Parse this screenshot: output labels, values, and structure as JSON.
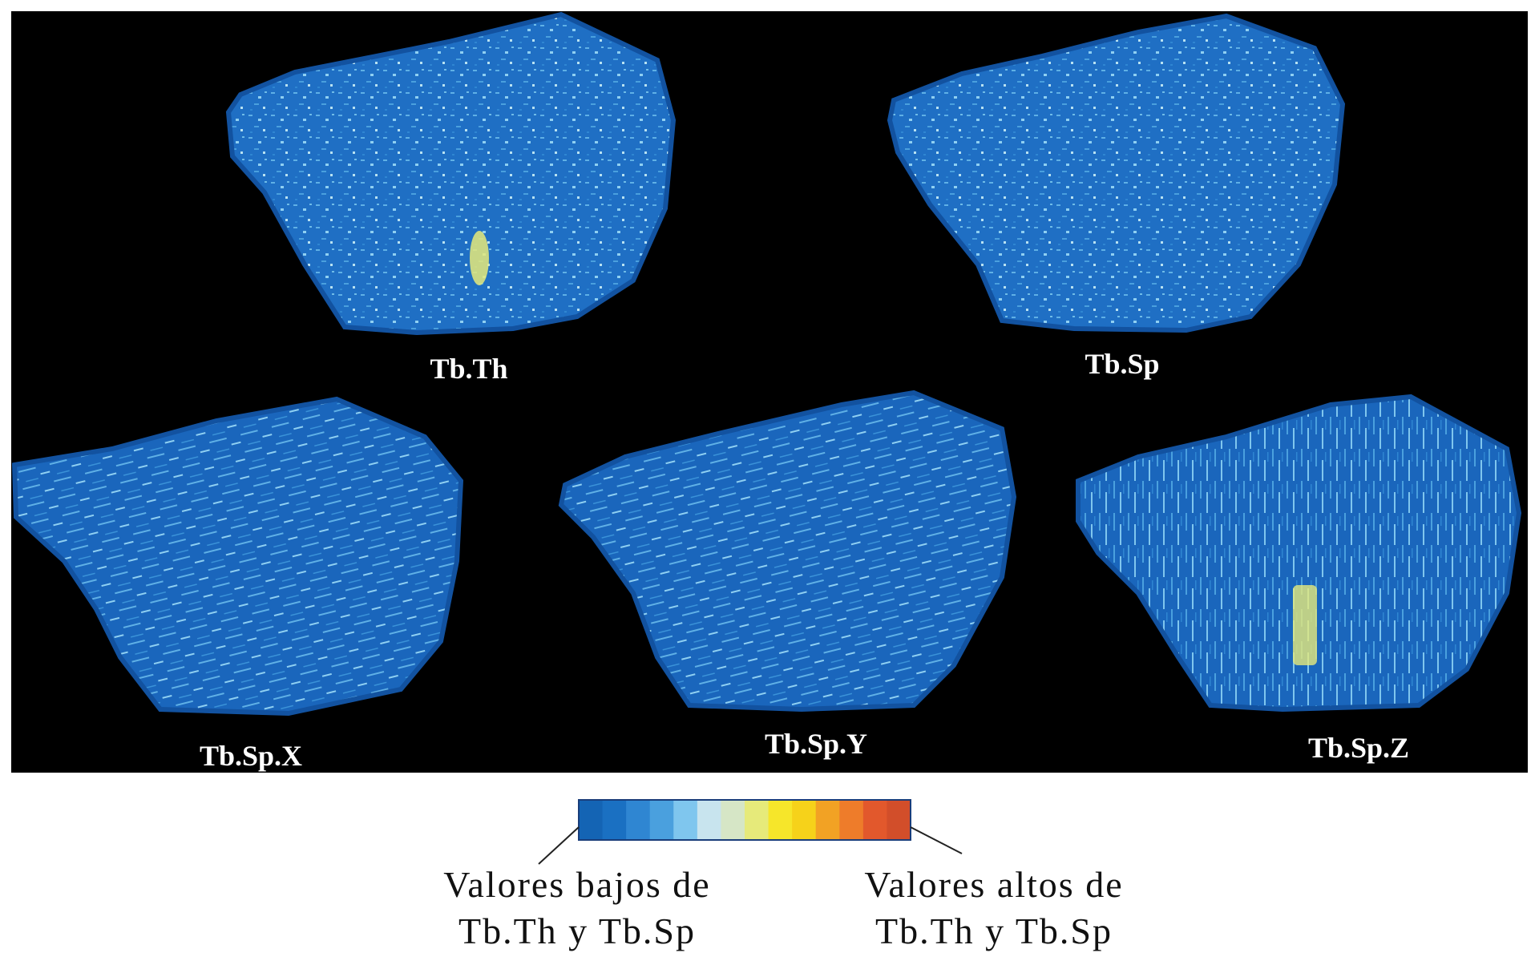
{
  "figure": {
    "panels": [
      {
        "label": "Tb.Th",
        "texture": "speckled",
        "hotspot": "yellow"
      },
      {
        "label": "Tb.Sp",
        "texture": "speckled",
        "hotspot": "none"
      },
      {
        "label": "Tb.Sp.X",
        "texture": "streaks",
        "hotspot": "none"
      },
      {
        "label": "Tb.Sp.Y",
        "texture": "streaks",
        "hotspot": "none"
      },
      {
        "label": "Tb.Sp.Z",
        "texture": "vertical",
        "hotspot": "yellow"
      }
    ],
    "background_color": "#000000"
  },
  "legend": {
    "colors": [
      "#1464b4",
      "#1a70c2",
      "#2f86d2",
      "#4aa0de",
      "#7fc6ee",
      "#c8e4ee",
      "#d6e6c6",
      "#e6ea7a",
      "#f6e62a",
      "#f6d21a",
      "#f2a224",
      "#ee7c2a",
      "#e2582c",
      "#d24e2a"
    ],
    "low_label_line1": "Valores bajos de",
    "low_label_line2": "Tb.Th y Tb.Sp",
    "high_label_line1": "Valores altos de",
    "high_label_line2": "Tb.Th y Tb.Sp"
  }
}
